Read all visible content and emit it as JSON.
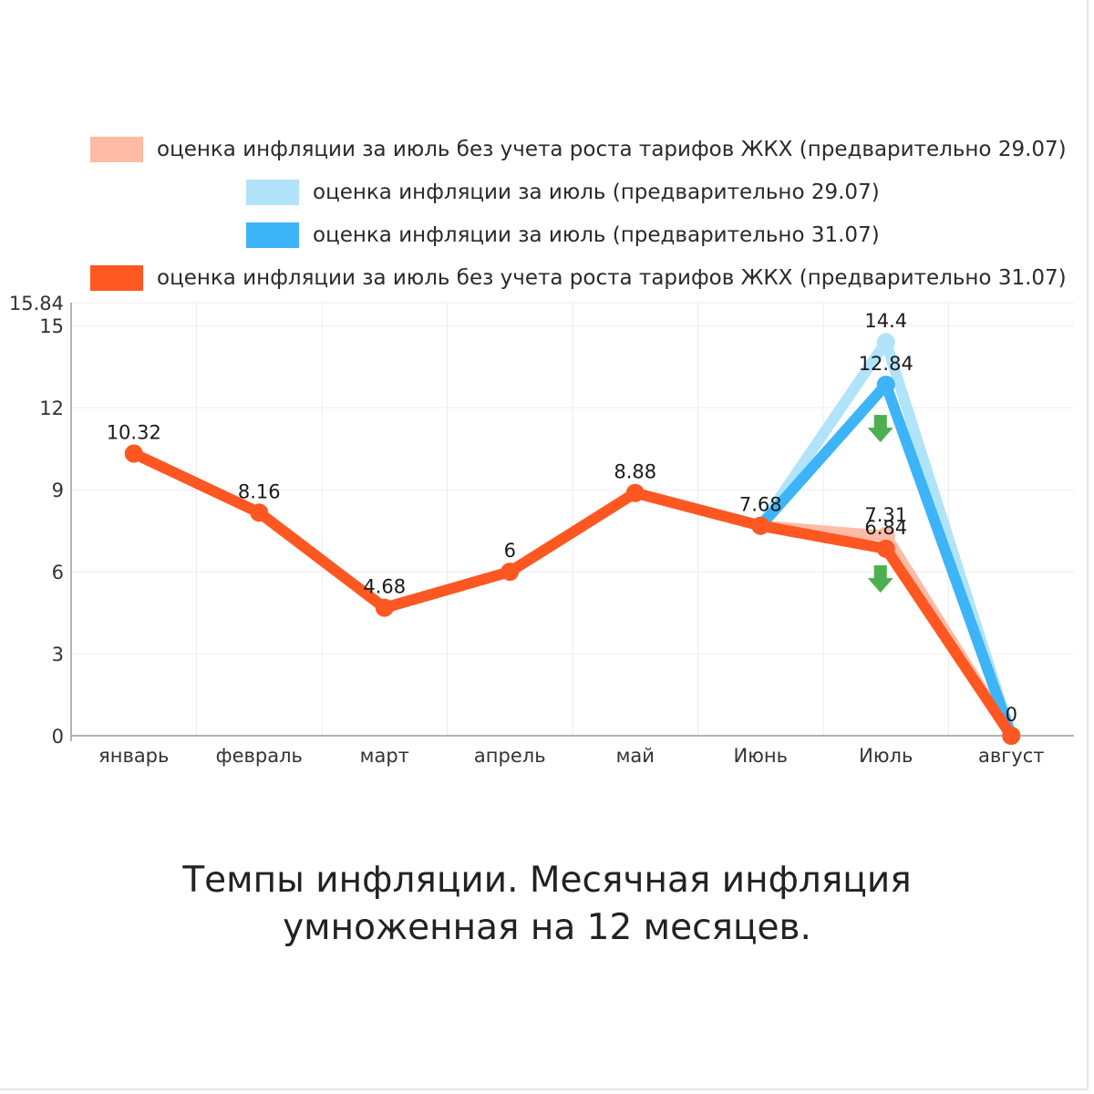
{
  "caption": {
    "line1": "Темпы инфляции. Месячная инфляция",
    "line2": "умноженная на 12 месяцев."
  },
  "legend": [
    {
      "label": "оценка инфляции за июль без учета роста тарифов ЖКХ (предварительно 29.07)",
      "color": "#ffbba6"
    },
    {
      "label": "оценка инфляции за июль (предварительно 29.07)",
      "color": "#b1e3fb"
    },
    {
      "label": "оценка инфляции за июль (предварительно 31.07)",
      "color": "#3db4f7"
    },
    {
      "label": "оценка инфляции за июль без учета роста тарифов ЖКХ (предварительно 31.07)",
      "color": "#ff5722"
    }
  ],
  "chart_data": {
    "type": "line",
    "categories": [
      "январь",
      "февраль",
      "март",
      "апрель",
      "май",
      "Июнь",
      "Июль",
      "август"
    ],
    "ylim": [
      0,
      15.84
    ],
    "yticks": [
      0,
      3,
      6,
      9,
      12,
      15,
      15.84
    ],
    "ytick_labels": [
      "0",
      "3",
      "6",
      "9",
      "12",
      "15",
      "15.84"
    ],
    "grid": true,
    "legend_position": "top",
    "annotations": [
      {
        "type": "down-arrow",
        "category": "Июль",
        "value": 11.2,
        "color": "#4caf50"
      },
      {
        "type": "down-arrow",
        "category": "Июль",
        "value": 5.7,
        "color": "#4caf50"
      }
    ],
    "series": [
      {
        "name": "оценка инфляции за июль без учета роста тарифов ЖКХ (предварительно 29.07)",
        "color": "#ffbba6",
        "values": [
          null,
          null,
          null,
          null,
          null,
          7.68,
          7.31,
          0
        ],
        "labels": [
          "",
          "",
          "",
          "",
          "",
          "",
          "7.31",
          ""
        ]
      },
      {
        "name": "оценка инфляции за июль (предварительно 29.07)",
        "color": "#b1e3fb",
        "values": [
          null,
          null,
          null,
          null,
          null,
          7.68,
          14.4,
          0
        ],
        "labels": [
          "",
          "",
          "",
          "",
          "",
          "",
          "14.4",
          ""
        ]
      },
      {
        "name": "оценка инфляции за июль (предварительно 31.07)",
        "color": "#3db4f7",
        "values": [
          null,
          null,
          null,
          null,
          null,
          7.68,
          12.84,
          0
        ],
        "labels": [
          "",
          "",
          "",
          "",
          "",
          "",
          "12.84",
          ""
        ]
      },
      {
        "name": "оценка инфляции за июль без учета роста тарифов ЖКХ (предварительно 31.07)",
        "color": "#ff5722",
        "values": [
          10.32,
          8.16,
          4.68,
          6,
          8.88,
          7.68,
          6.84,
          0
        ],
        "labels": [
          "10.32",
          "8.16",
          "4.68",
          "6",
          "8.88",
          "7.68",
          "6.84",
          "0"
        ]
      }
    ]
  }
}
